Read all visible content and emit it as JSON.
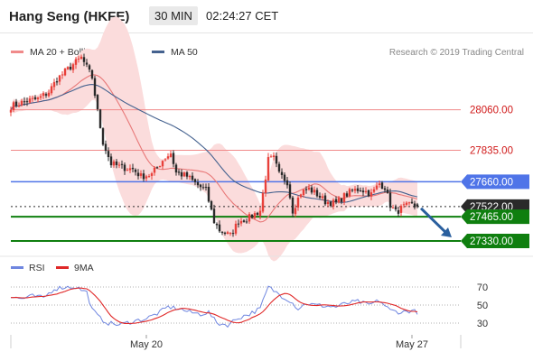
{
  "header": {
    "title": "Hang Seng (HKFE)",
    "timeframe": "30 MIN",
    "time": "02:24:27 CET"
  },
  "colors": {
    "bull": "#e8403a",
    "bear": "#2a2a2a",
    "ma20": "#e87878",
    "band_fill": "#fbdcdc",
    "ma50": "#45628f",
    "resistance": "#f08a8a",
    "blue_level": "#4f74e8",
    "green_level": "#0f7f0f",
    "current": "#2a2a2a",
    "arrow": "#2a5f9e",
    "rsi": "#6f86e0",
    "rsi_ma": "#e02828"
  },
  "chart_data": [
    {
      "type": "candlestick",
      "title": "",
      "legend": [
        {
          "name": "MA 20 + Bollinger Bands",
          "color": "#f08a8a"
        },
        {
          "name": "MA 50",
          "color": "#45628f"
        }
      ],
      "legend_placement": "top-left",
      "credit": "Research © 2019 Trading Central",
      "ylim": [
        27270,
        28450
      ],
      "x_labels": [
        {
          "label": "May 20",
          "index": 50
        },
        {
          "label": "May 27",
          "index": 148
        }
      ],
      "levels": [
        {
          "label": "28060.00",
          "value": 28060,
          "style": "resistance"
        },
        {
          "label": "27835.00",
          "value": 27835,
          "style": "resistance"
        },
        {
          "label": "27660.00",
          "value": 27660,
          "style": "blue"
        },
        {
          "label": "27522.00",
          "value": 27522,
          "style": "current"
        },
        {
          "label": "27465.00",
          "value": 27465,
          "style": "green"
        },
        {
          "label": "27330.00",
          "value": 27330,
          "style": "green"
        }
      ],
      "close_anchors": [
        [
          0,
          28080
        ],
        [
          6,
          28110
        ],
        [
          10,
          28120
        ],
        [
          14,
          28160
        ],
        [
          17,
          28230
        ],
        [
          22,
          28300
        ],
        [
          26,
          28350
        ],
        [
          30,
          28240
        ],
        [
          32,
          28050
        ],
        [
          34,
          27880
        ],
        [
          37,
          27760
        ],
        [
          41,
          27740
        ],
        [
          45,
          27730
        ],
        [
          48,
          27690
        ],
        [
          52,
          27700
        ],
        [
          56,
          27780
        ],
        [
          59,
          27820
        ],
        [
          61,
          27710
        ],
        [
          65,
          27690
        ],
        [
          69,
          27640
        ],
        [
          72,
          27610
        ],
        [
          75,
          27440
        ],
        [
          77,
          27390
        ],
        [
          81,
          27360
        ],
        [
          84,
          27440
        ],
        [
          88,
          27460
        ],
        [
          92,
          27500
        ],
        [
          95,
          27780
        ],
        [
          97,
          27790
        ],
        [
          99,
          27700
        ],
        [
          102,
          27660
        ],
        [
          104,
          27500
        ],
        [
          107,
          27600
        ],
        [
          110,
          27620
        ],
        [
          113,
          27590
        ],
        [
          116,
          27550
        ],
        [
          120,
          27540
        ],
        [
          123,
          27580
        ],
        [
          126,
          27610
        ],
        [
          129,
          27620
        ],
        [
          133,
          27590
        ],
        [
          136,
          27650
        ],
        [
          138,
          27630
        ],
        [
          140,
          27530
        ],
        [
          142,
          27490
        ],
        [
          145,
          27520
        ],
        [
          148,
          27530
        ],
        [
          150,
          27510
        ]
      ],
      "projection": {
        "from": 27522,
        "to": 27330
      }
    },
    {
      "type": "line",
      "legend": [
        {
          "name": "RSI",
          "color": "#6f86e0"
        },
        {
          "name": "9MA",
          "color": "#e02828"
        }
      ],
      "ylim": [
        20,
        80
      ],
      "y_ticks": [
        70,
        50,
        30
      ],
      "anchors": [
        [
          0,
          59
        ],
        [
          4,
          57
        ],
        [
          8,
          60
        ],
        [
          12,
          58
        ],
        [
          16,
          68
        ],
        [
          20,
          70
        ],
        [
          24,
          70
        ],
        [
          28,
          64
        ],
        [
          30,
          45
        ],
        [
          33,
          35
        ],
        [
          36,
          30
        ],
        [
          40,
          28
        ],
        [
          45,
          32
        ],
        [
          50,
          35
        ],
        [
          55,
          42
        ],
        [
          58,
          48
        ],
        [
          62,
          46
        ],
        [
          66,
          42
        ],
        [
          70,
          40
        ],
        [
          73,
          42
        ],
        [
          76,
          30
        ],
        [
          80,
          28
        ],
        [
          84,
          36
        ],
        [
          88,
          40
        ],
        [
          92,
          46
        ],
        [
          95,
          70
        ],
        [
          97,
          66
        ],
        [
          100,
          60
        ],
        [
          103,
          55
        ],
        [
          106,
          46
        ],
        [
          109,
          52
        ],
        [
          112,
          50
        ],
        [
          116,
          49
        ],
        [
          120,
          48
        ],
        [
          124,
          52
        ],
        [
          128,
          54
        ],
        [
          132,
          50
        ],
        [
          136,
          55
        ],
        [
          140,
          44
        ],
        [
          144,
          42
        ],
        [
          148,
          44
        ],
        [
          150,
          42
        ]
      ]
    }
  ]
}
